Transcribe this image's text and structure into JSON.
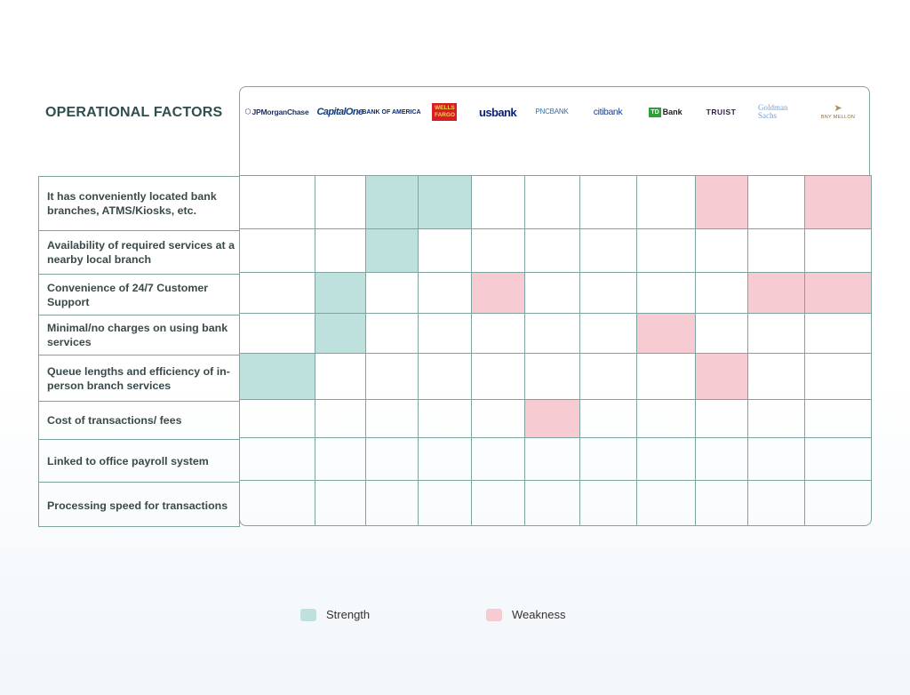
{
  "title": "OPERATIONAL FACTORS",
  "banks": [
    {
      "icon": "jpmorgan-chase-logo",
      "label": "JPMorganChase",
      "color": "#1c2f5e"
    },
    {
      "icon": "capital-one-logo",
      "label": "CapitalOne",
      "color": "#143c7a"
    },
    {
      "icon": "bank-of-america-logo",
      "label": "BANK OF AMERICA",
      "color": "#0b2a6f"
    },
    {
      "icon": "wells-fargo-logo",
      "label": "WELLS FARGO",
      "color": "#d71e28"
    },
    {
      "icon": "us-bank-logo",
      "label": "usbank",
      "color": "#0c2074"
    },
    {
      "icon": "pnc-bank-logo",
      "label": "PNCBANK",
      "color": "#3b6fa0"
    },
    {
      "icon": "citibank-logo",
      "label": "citibank",
      "color": "#1b3f8a"
    },
    {
      "icon": "td-bank-logo",
      "label": "Bank",
      "color": "#2f9f3b"
    },
    {
      "icon": "truist-logo",
      "label": "TRUIST",
      "color": "#2e1a47"
    },
    {
      "icon": "goldman-sachs-logo",
      "label": "Goldman Sachs",
      "color": "#7aa1d2"
    },
    {
      "icon": "bny-mellon-logo",
      "label": "BNY MELLON",
      "color": "#8a6d3b"
    }
  ],
  "factors": [
    "It has conveniently located bank branches, ATMS/Kiosks, etc.",
    "Availability of required services at a nearby local branch",
    "Convenience of 24/7 Customer Support",
    "Minimal/no charges on using bank services",
    "Queue lengths and efficiency of in-person branch services",
    "Cost of transactions/ fees",
    "Linked to office payroll system",
    "Processing speed for transactions"
  ],
  "matrix": [
    [
      "",
      "",
      "s",
      "s",
      "",
      "",
      "",
      "",
      "w",
      "",
      "w"
    ],
    [
      "",
      "",
      "s",
      "",
      "",
      "",
      "",
      "",
      "",
      "",
      ""
    ],
    [
      "",
      "s",
      "",
      "",
      "w",
      "",
      "",
      "",
      "",
      "w",
      "w"
    ],
    [
      "",
      "s",
      "",
      "",
      "",
      "",
      "",
      "w",
      "",
      "",
      ""
    ],
    [
      "s",
      "",
      "",
      "",
      "",
      "",
      "",
      "",
      "w",
      "",
      ""
    ],
    [
      "",
      "",
      "",
      "",
      "",
      "w",
      "",
      "",
      "",
      "",
      ""
    ],
    [
      "",
      "",
      "",
      "",
      "",
      "",
      "",
      "",
      "",
      "",
      ""
    ],
    [
      "",
      "",
      "",
      "",
      "",
      "",
      "",
      "",
      "",
      "",
      ""
    ]
  ],
  "legend": {
    "strength": {
      "label": "Strength",
      "color": "#bfe1de"
    },
    "weakness": {
      "label": "Weakness",
      "color": "#f6ccd2"
    }
  }
}
